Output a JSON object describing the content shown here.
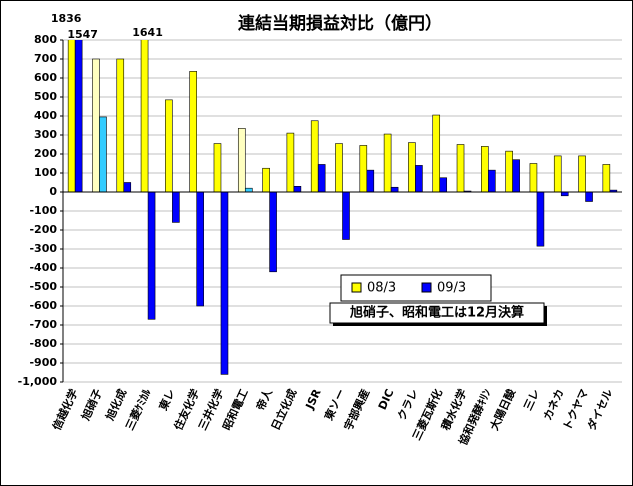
{
  "chart_data": {
    "type": "bar",
    "title": "連結当期損益対比（億円）",
    "categories": [
      "信越化学",
      "旭硝子",
      "旭化成",
      "三菱ｹﾐｶﾙ",
      "東レ",
      "住友化学",
      "三井化学",
      "昭和電工",
      "帝人",
      "日立化成",
      "JSR",
      "東ソー",
      "宇部興産",
      "DIC",
      "クラレ",
      "三菱瓦斯化",
      "積水化学",
      "協和発酵ｷﾘﾝ",
      "大陽日酸",
      "三レ",
      "カネカ",
      "トクヤマ",
      "ダイセル"
    ],
    "series": [
      {
        "name": "08/3",
        "color": "#ffff00",
        "colors": [
          "#ffff00",
          "#ffffc0",
          "#ffff00",
          "#ffff00",
          "#ffff00",
          "#ffff00",
          "#ffff00",
          "#ffffc0",
          "#ffff00",
          "#ffff00",
          "#ffff00",
          "#ffff00",
          "#ffff00",
          "#ffff00",
          "#ffff00",
          "#ffff00",
          "#ffff00",
          "#ffff00",
          "#ffff00",
          "#ffff00",
          "#ffff00",
          "#ffff00",
          "#ffff00"
        ],
        "values": [
          1836,
          700,
          700,
          1641,
          485,
          635,
          255,
          335,
          125,
          310,
          375,
          255,
          245,
          305,
          260,
          405,
          250,
          240,
          215,
          150,
          190,
          190,
          145
        ],
        "value_labels": [
          "1836",
          null,
          null,
          "1641",
          null,
          null,
          null,
          null,
          null,
          null,
          null,
          null,
          null,
          null,
          null,
          null,
          null,
          null,
          null,
          null,
          null,
          null,
          null
        ]
      },
      {
        "name": "09/3",
        "color": "#0000ff",
        "colors": [
          "#0000ff",
          "#33ccff",
          "#0000ff",
          "#0000ff",
          "#0000ff",
          "#0000ff",
          "#0000ff",
          "#33ccff",
          "#0000ff",
          "#0000ff",
          "#0000ff",
          "#0000ff",
          "#0000ff",
          "#0000ff",
          "#0000ff",
          "#0000ff",
          "#0000ff",
          "#0000ff",
          "#0000ff",
          "#0000ff",
          "#0000ff",
          "#0000ff",
          "#0000ff"
        ],
        "values": [
          1547,
          395,
          50,
          -670,
          -160,
          -600,
          -960,
          20,
          -420,
          30,
          145,
          -250,
          115,
          25,
          140,
          75,
          5,
          115,
          170,
          -285,
          -20,
          -50,
          10
        ],
        "value_labels": [
          "1547",
          null,
          null,
          null,
          null,
          null,
          null,
          null,
          null,
          null,
          null,
          null,
          null,
          null,
          null,
          null,
          null,
          null,
          null,
          null,
          null,
          null,
          null
        ]
      }
    ],
    "annotation": "旭硝子、昭和電工は12月決算",
    "ylim": [
      -1000,
      800
    ],
    "yticks": [
      800,
      700,
      600,
      500,
      400,
      300,
      200,
      100,
      0,
      -100,
      -200,
      -300,
      -400,
      -500,
      -600,
      -700,
      -800,
      -900,
      {
        "value": -1000,
        "label": "-1,000"
      }
    ],
    "grid": true
  }
}
